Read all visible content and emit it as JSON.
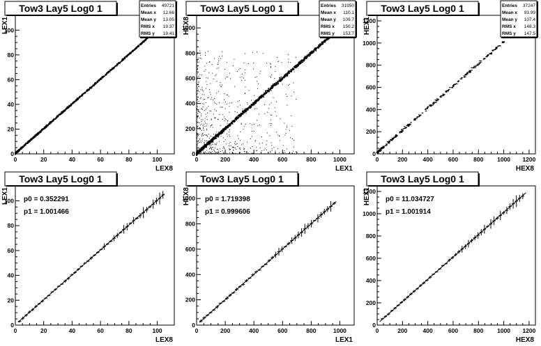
{
  "chart_data": [
    {
      "type": "scatter",
      "title": "Tow3 Lay5 Log0 1",
      "xlabel": "LEX8",
      "ylabel": "LEX1",
      "xlim": [
        0,
        112
      ],
      "ylim": [
        0,
        112
      ],
      "xticks": [
        0,
        20,
        40,
        60,
        80,
        100
      ],
      "yticks": [
        0,
        20,
        40,
        60,
        80,
        100
      ],
      "stats": [
        {
          "label": "Entries",
          "value": "49721"
        },
        {
          "label": "Mean x",
          "value": "12.66"
        },
        {
          "label": "Mean y",
          "value": "13.05"
        },
        {
          "label": "RMS x",
          "value": "19.37"
        },
        {
          "label": "RMS y",
          "value": "19.41"
        }
      ],
      "trend": {
        "x": [
          0,
          107
        ],
        "y": [
          0.35,
          107.5
        ]
      },
      "scatter_density": "dense-line"
    },
    {
      "type": "scatter",
      "title": "Tow3 Lay5 Log0 1",
      "xlabel": "LEX1",
      "ylabel": "HEX8",
      "xlim": [
        0,
        1100
      ],
      "ylim": [
        0,
        1100
      ],
      "xticks": [
        0,
        200,
        400,
        600,
        800,
        1000
      ],
      "yticks": [
        0,
        200,
        400,
        600,
        800,
        1000
      ],
      "stats": [
        {
          "label": "Entries",
          "value": "31950"
        },
        {
          "label": "Mean x",
          "value": "110.1"
        },
        {
          "label": "Mean y",
          "value": "109.7"
        },
        {
          "label": "RMS x",
          "value": "150.2"
        },
        {
          "label": "RMS y",
          "value": "153.7"
        }
      ],
      "trend": {
        "x": [
          0,
          980
        ],
        "y": [
          1.7,
          981
        ]
      },
      "scatter_density": "line-with-noise"
    },
    {
      "type": "scatter",
      "title": "Tow3 Lay5 Log0 1",
      "xlabel": "HEX8",
      "ylabel": "HEX1",
      "xlim": [
        0,
        1250
      ],
      "ylim": [
        0,
        1250
      ],
      "xticks": [
        0,
        200,
        400,
        600,
        800,
        1000,
        1200
      ],
      "yticks": [
        0,
        200,
        400,
        600,
        800,
        1000,
        1200
      ],
      "stats": [
        {
          "label": "Entries",
          "value": "37247"
        },
        {
          "label": "Mean x",
          "value": "93.99"
        },
        {
          "label": "Mean y",
          "value": "107.4"
        },
        {
          "label": "RMS x",
          "value": "148.3"
        },
        {
          "label": "RMS y",
          "value": "147.5"
        }
      ],
      "trend": {
        "x": [
          0,
          1010
        ],
        "y": [
          11,
          1023
        ]
      },
      "scatter_density": "sparse-clusters"
    },
    {
      "type": "line",
      "title": "Tow3 Lay5 Log0 1",
      "xlabel": "LEX8",
      "ylabel": "LEX1",
      "xlim": [
        0,
        112
      ],
      "ylim": [
        0,
        112
      ],
      "xticks": [
        0,
        20,
        40,
        60,
        80,
        100
      ],
      "yticks": [
        0,
        20,
        40,
        60,
        80,
        100
      ],
      "fit": [
        {
          "label": "p0 = 0.352291"
        },
        {
          "label": "p1 = 1.001466"
        }
      ],
      "trend": {
        "x": [
          2,
          105
        ],
        "y": [
          2.4,
          105.5
        ]
      },
      "error_points": {
        "x_start": 3,
        "x_end": 104,
        "n": 45
      }
    },
    {
      "type": "line",
      "title": "Tow3 Lay5 Log0 1",
      "xlabel": "LEX1",
      "ylabel": "HEX8",
      "xlim": [
        0,
        1100
      ],
      "ylim": [
        0,
        1100
      ],
      "xticks": [
        0,
        200,
        400,
        600,
        800,
        1000
      ],
      "yticks": [
        0,
        200,
        400,
        600,
        800,
        1000
      ],
      "fit": [
        {
          "label": "p0 = 1.719398"
        },
        {
          "label": "p1 = 0.999606"
        }
      ],
      "trend": {
        "x": [
          20,
          975
        ],
        "y": [
          21.7,
          976
        ]
      },
      "error_points": {
        "x_start": 30,
        "x_end": 960,
        "n": 42
      }
    },
    {
      "type": "line",
      "title": "Tow3 Lay5 Log0 1",
      "xlabel": "HEX8",
      "ylabel": "HEX1",
      "xlim": [
        0,
        1250
      ],
      "ylim": [
        0,
        1250
      ],
      "xticks": [
        0,
        200,
        400,
        600,
        800,
        1000,
        1200
      ],
      "yticks": [
        0,
        200,
        400,
        600,
        800,
        1000,
        1200
      ],
      "fit": [
        {
          "label": "p0 = 11.034727"
        },
        {
          "label": "p1 = 1.001914"
        }
      ],
      "trend": {
        "x": [
          20,
          1175
        ],
        "y": [
          31,
          1188
        ]
      },
      "error_points": {
        "x_start": 40,
        "x_end": 1150,
        "n": 45
      }
    }
  ]
}
